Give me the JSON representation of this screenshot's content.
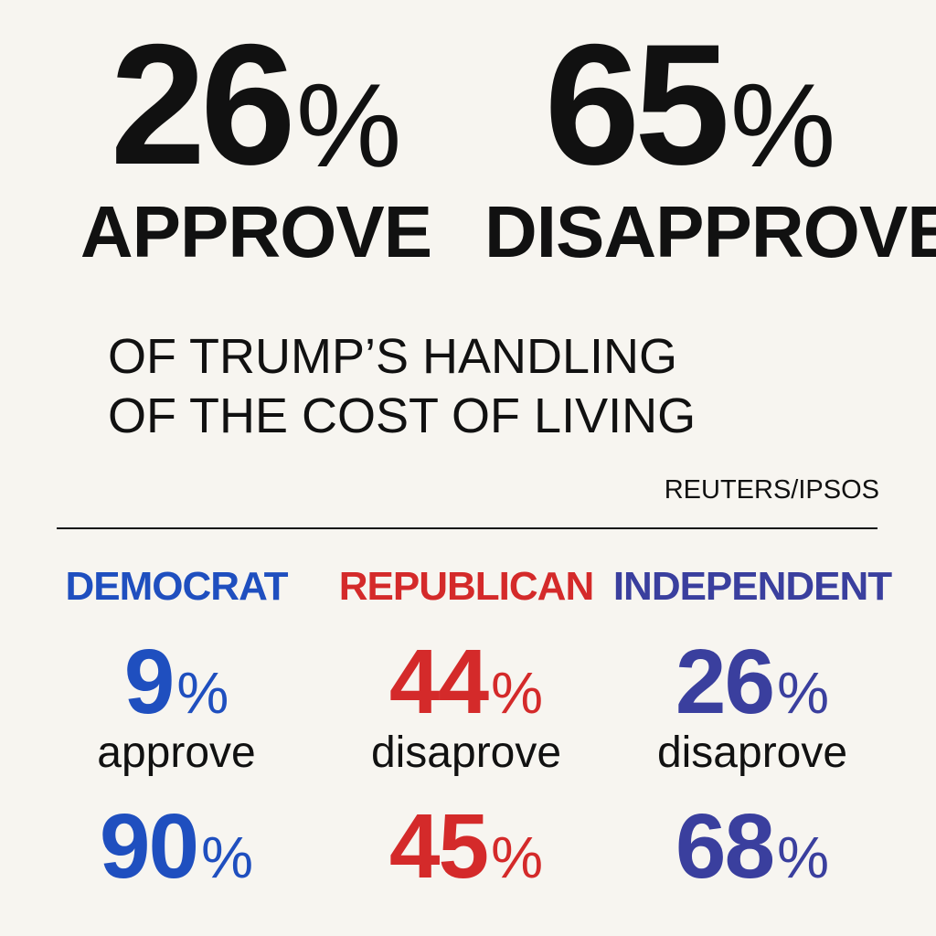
{
  "headline": {
    "approve": {
      "value": "26",
      "percent_sign": "%",
      "label": "APPROVE"
    },
    "disapprove": {
      "value": "65",
      "percent_sign": "%",
      "label": "DISAPPROVE"
    }
  },
  "subtitle": {
    "line1": "OF TRUMP’S HANDLING",
    "line2": "OF THE COST OF LIVING"
  },
  "source": "REUTERS/IPSOS",
  "parties": [
    {
      "name": "DEMOCRAT",
      "color": "#1f4fbf",
      "first_value": "9",
      "percent_sign": "%",
      "word": "approve",
      "second_value": "90"
    },
    {
      "name": "REPUBLICAN",
      "color": "#d42a2a",
      "first_value": "44",
      "percent_sign": "%",
      "word": "disaprove",
      "second_value": "45"
    },
    {
      "name": "INDEPENDENT",
      "color": "#3a3f9e",
      "first_value": "26",
      "percent_sign": "%",
      "word": "disaprove",
      "second_value": "68"
    }
  ]
}
